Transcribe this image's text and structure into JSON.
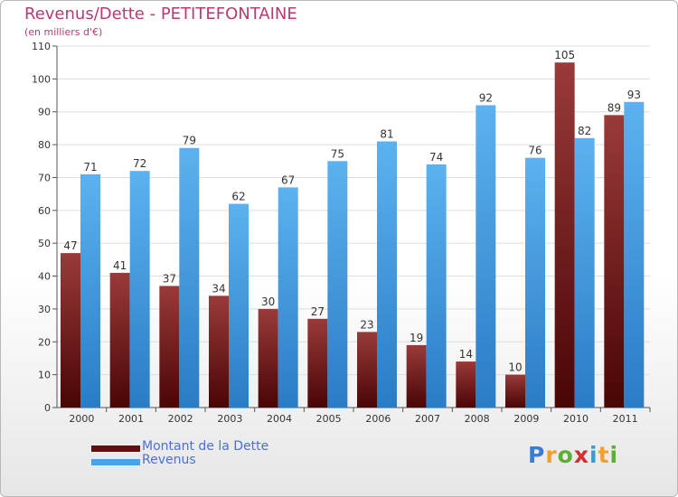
{
  "chart_data": {
    "type": "bar",
    "title": "Revenus/Dette - PETITEFONTAINE",
    "subtitle": "(en milliers d'€)",
    "categories": [
      "2000",
      "2001",
      "2002",
      "2003",
      "2004",
      "2005",
      "2006",
      "2007",
      "2008",
      "2009",
      "2010",
      "2011"
    ],
    "series": [
      {
        "name": "Montant de la Dette",
        "values": [
          47,
          41,
          37,
          34,
          30,
          27,
          23,
          19,
          14,
          10,
          105,
          89
        ],
        "color": "#7a1a1a"
      },
      {
        "name": "Revenus",
        "values": [
          71,
          72,
          79,
          62,
          67,
          75,
          81,
          74,
          92,
          76,
          82,
          93
        ],
        "color": "#4aa3e6"
      }
    ],
    "ylim": [
      0,
      110
    ],
    "yticks": [
      0,
      10,
      20,
      30,
      40,
      50,
      60,
      70,
      80,
      90,
      100,
      110
    ],
    "grid": true,
    "legend_position": "bottom-left"
  },
  "logo": {
    "letters": [
      "P",
      "r",
      "o",
      "x",
      "i",
      "t",
      "i"
    ],
    "colors": [
      "#3a7bd5",
      "#f0a030",
      "#5ab030",
      "#d03030",
      "#3a9ad5",
      "#f0a030",
      "#5ab030"
    ]
  }
}
